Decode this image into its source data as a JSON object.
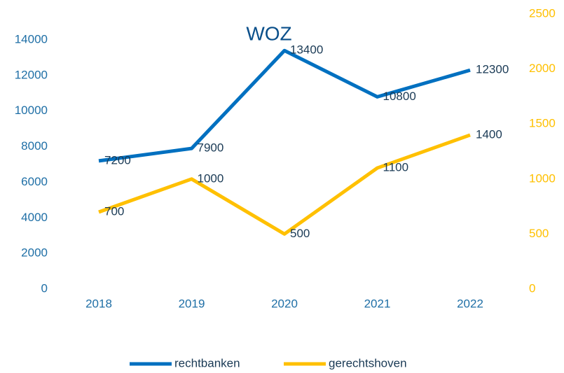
{
  "chart_data": {
    "type": "line",
    "title": "WOZ",
    "categories": [
      "2018",
      "2019",
      "2020",
      "2021",
      "2022"
    ],
    "series": [
      {
        "name": "rechtbanken",
        "color": "#0070c0",
        "values": [
          7200,
          7900,
          13400,
          10800,
          12300
        ]
      },
      {
        "name": "gerechtshoven",
        "color": "#ffc000",
        "axis": "y2",
        "values": [
          700,
          1000,
          500,
          1100,
          1400
        ]
      }
    ],
    "ylim": [
      0,
      14000
    ],
    "yticks": [
      0,
      2000,
      4000,
      6000,
      8000,
      10000,
      12000,
      14000
    ],
    "y2lim": [
      0,
      2500
    ],
    "y2ticks": [
      0,
      500,
      1000,
      1500,
      2000,
      2500
    ],
    "grid": false,
    "legend": "bottom"
  }
}
